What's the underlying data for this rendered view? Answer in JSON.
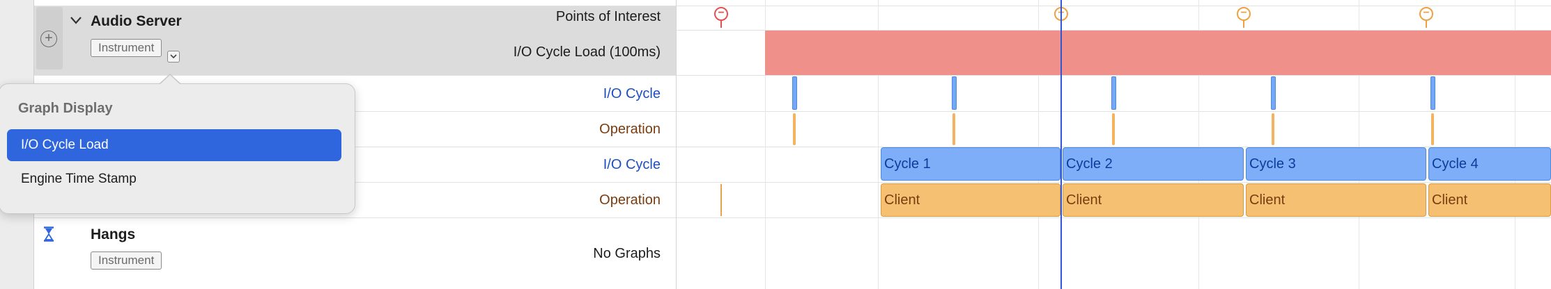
{
  "audio_server": {
    "name": "Audio Server",
    "badge": "Instrument",
    "rows": {
      "points_of_interest": "Points of Interest",
      "io_cycle_load": "I/O Cycle Load (100ms)",
      "io_cycle_1": "I/O Cycle",
      "operation_1": "Operation",
      "io_cycle_2": "I/O Cycle",
      "operation_2": "Operation"
    }
  },
  "hangs": {
    "name": "Hangs",
    "badge": "Instrument",
    "no_graphs": "No Graphs"
  },
  "popover": {
    "title": "Graph Display",
    "options": [
      "I/O Cycle Load",
      "Engine Time Stamp"
    ],
    "selected": "I/O Cycle Load"
  },
  "timeline": {
    "cycles": [
      "Cycle 1",
      "Cycle 2",
      "Cycle 3",
      "Cycle 4"
    ],
    "clients": [
      "Client",
      "Client",
      "Client",
      "Client"
    ]
  },
  "icons": {
    "add": "plus-circle-icon",
    "disclosure": "chevron-down-icon",
    "hangs": "hourglass-icon",
    "poi_red": "minus-circle-icon",
    "poi_orange": "minus-circle-icon"
  },
  "colors": {
    "selection": "#2f66dd",
    "load_bar": "#f0908a",
    "cycle": "#7daef7",
    "client": "#f6c073",
    "playhead": "#2f55d4"
  }
}
